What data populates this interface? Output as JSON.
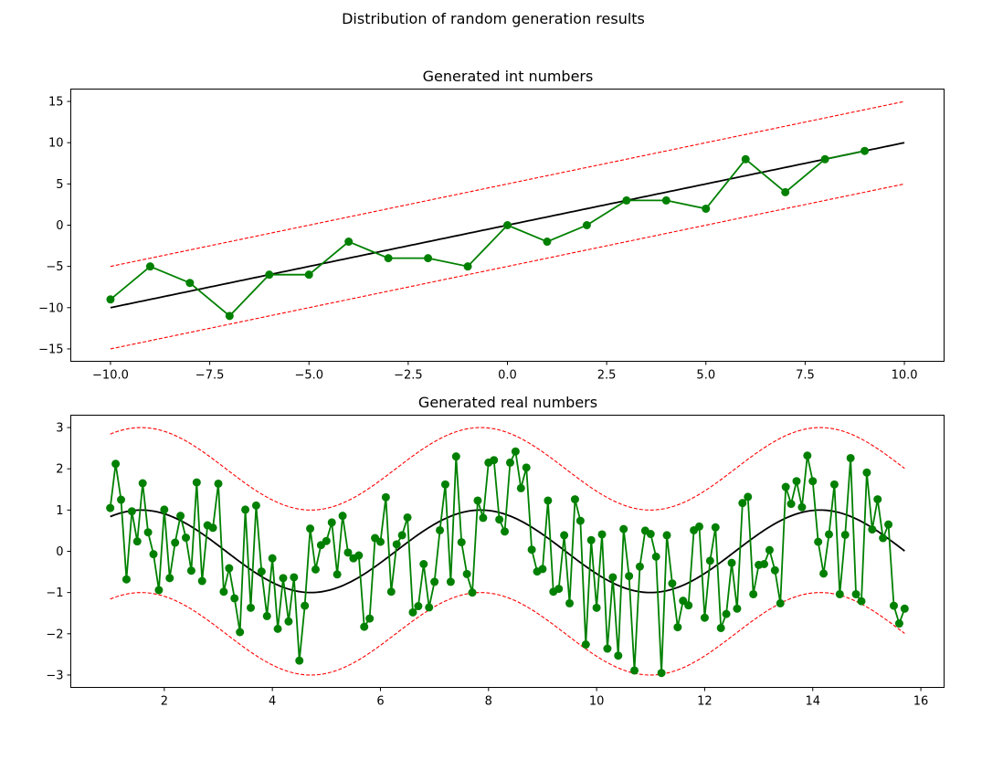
{
  "figure": {
    "suptitle": "Distribution of random generation results"
  },
  "chart_data": [
    {
      "type": "line",
      "title": "Generated int numbers",
      "xlabel": "",
      "ylabel": "",
      "xlim": [
        -11,
        11
      ],
      "ylim": [
        -16.5,
        16.5
      ],
      "xticks": [
        -10,
        -7.5,
        -5,
        -2.5,
        0,
        2.5,
        5,
        7.5,
        10
      ],
      "xtick_labels": [
        "−10.0",
        "−7.5",
        "−5.0",
        "−2.5",
        "0.0",
        "2.5",
        "5.0",
        "7.5",
        "10.0"
      ],
      "yticks": [
        -15,
        -10,
        -5,
        0,
        5,
        10,
        15
      ],
      "ytick_labels": [
        "−15",
        "−10",
        "−5",
        "0",
        "5",
        "10",
        "15"
      ],
      "grid": false,
      "reference": {
        "function": "y = x",
        "x_range": [
          -10,
          10
        ],
        "band": 5
      },
      "series": [
        {
          "x": [
            -10,
            -9,
            -8,
            -7,
            -6,
            -5,
            -4,
            -3,
            -2,
            -1,
            0,
            1,
            2,
            3,
            4,
            5,
            6,
            7,
            8,
            9
          ],
          "y": [
            -9,
            -5,
            -7,
            -11,
            -6,
            -6,
            -2,
            -4,
            -4,
            -5,
            0,
            -2,
            0,
            3,
            3,
            2,
            8,
            4,
            8,
            9
          ]
        }
      ],
      "colors": {
        "points": "#008000",
        "reference": "#000000",
        "bounds": "#ff0000"
      }
    },
    {
      "type": "line",
      "title": "Generated real numbers",
      "xlabel": "",
      "ylabel": "",
      "xlim": [
        0.27,
        16.43
      ],
      "ylim": [
        -3.3,
        3.3
      ],
      "xticks": [
        2,
        4,
        6,
        8,
        10,
        12,
        14,
        16
      ],
      "xtick_labels": [
        "2",
        "4",
        "6",
        "8",
        "10",
        "12",
        "14",
        "16"
      ],
      "yticks": [
        -3,
        -2,
        -1,
        0,
        1,
        2,
        3
      ],
      "ytick_labels": [
        "−3",
        "−2",
        "−1",
        "0",
        "1",
        "2",
        "3"
      ],
      "grid": false,
      "reference": {
        "function": "y = sin(x)",
        "x_range": [
          1,
          15.7
        ],
        "band": 2
      },
      "series": [
        {
          "x_start": 1.0,
          "x_step": 0.1,
          "y": [
            1.05,
            2.12,
            1.25,
            -0.68,
            0.97,
            0.24,
            1.65,
            0.46,
            -0.07,
            -0.94,
            1.01,
            -0.65,
            0.21,
            0.86,
            0.33,
            -0.47,
            1.67,
            -0.72,
            0.63,
            0.57,
            1.64,
            -0.98,
            -0.41,
            -1.14,
            -1.96,
            1.01,
            -1.37,
            1.11,
            -0.49,
            -1.57,
            -0.17,
            -1.88,
            -0.65,
            -1.7,
            -0.63,
            -2.65,
            -1.32,
            0.55,
            -0.44,
            0.15,
            0.25,
            0.7,
            -0.56,
            0.86,
            -0.03,
            -0.17,
            -0.1,
            -1.83,
            -1.63,
            0.32,
            0.23,
            1.31,
            -0.98,
            0.17,
            0.39,
            0.82,
            -1.48,
            -1.33,
            -0.31,
            -1.36,
            -0.74,
            0.51,
            1.62,
            -0.74,
            2.3,
            0.22,
            -0.55,
            -1.0,
            1.23,
            0.81,
            2.15,
            2.21,
            0.77,
            0.48,
            2.15,
            2.42,
            1.53,
            2.03,
            0.04,
            -0.49,
            -0.43,
            1.23,
            -0.98,
            -0.91,
            0.39,
            -1.26,
            1.26,
            0.74,
            -2.26,
            0.27,
            -1.37,
            0.41,
            -2.36,
            -0.63,
            -2.53,
            0.54,
            -0.6,
            -2.89,
            -0.37,
            0.5,
            0.42,
            -0.13,
            -2.95,
            0.39,
            -0.78,
            -1.84,
            -1.2,
            -1.31,
            0.51,
            0.6,
            -1.61,
            -0.23,
            0.58,
            -1.86,
            -1.52,
            -0.28,
            -1.39,
            1.17,
            1.32,
            -1.04,
            -0.33,
            -0.31,
            0.03,
            -0.46,
            -1.26,
            1.56,
            1.15,
            1.7,
            1.07,
            2.32,
            1.7,
            0.23,
            -0.54,
            0.41,
            1.62,
            -1.04,
            0.4,
            2.26,
            -1.04,
            -1.21,
            1.91,
            0.53,
            1.26,
            0.32,
            0.65,
            -1.32,
            -1.75,
            -1.39
          ]
        }
      ],
      "colors": {
        "points": "#008000",
        "reference": "#000000",
        "bounds": "#ff0000"
      }
    }
  ]
}
